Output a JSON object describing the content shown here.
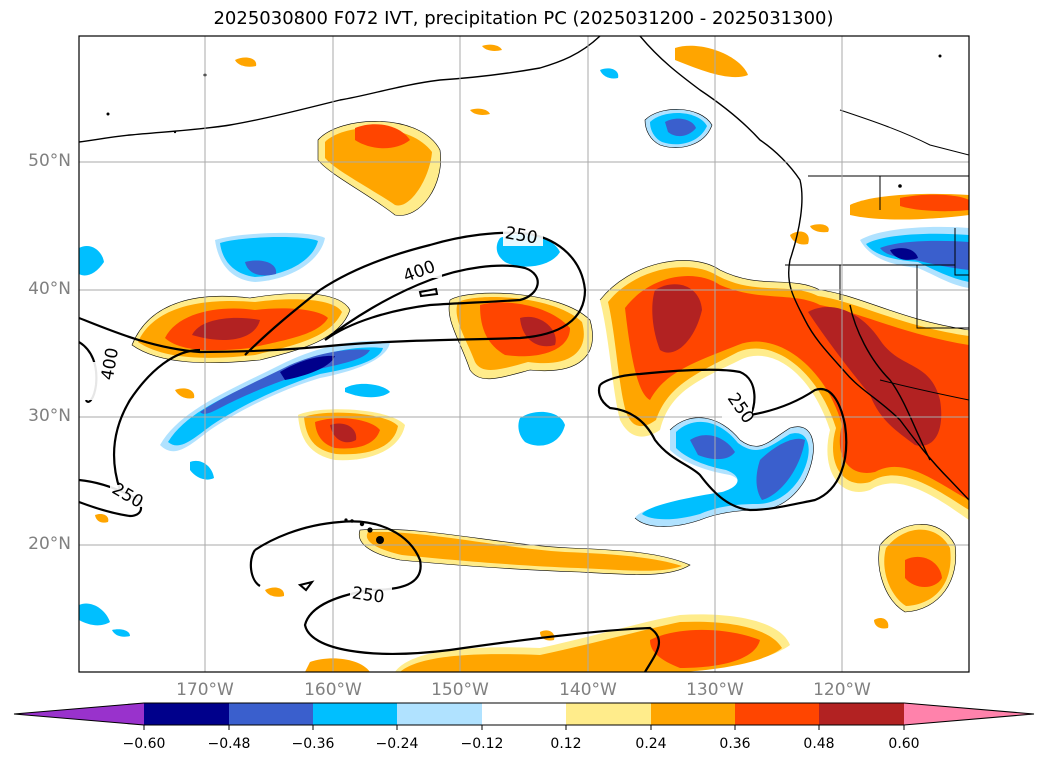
{
  "title": "2025030800 F072 IVT, precipitation PC (2025031200 - 2025031300)",
  "lat_labels": [
    "50°N",
    "40°N",
    "30°N",
    "20°N"
  ],
  "lon_labels": [
    "170°W",
    "160°W",
    "150°W",
    "140°W",
    "130°W",
    "120°W"
  ],
  "colorbar": {
    "ticks": [
      "−0.60",
      "−0.48",
      "−0.36",
      "−0.24",
      "−0.12",
      "0.12",
      "0.24",
      "0.36",
      "0.48",
      "0.60"
    ],
    "colors": {
      "lt_neg060": "#9932cc",
      "neg060_neg048": "#00008b",
      "neg048_neg036": "#3a5fcd",
      "neg036_neg024": "#00bfff",
      "neg024_neg012": "#b0e2ff",
      "neutral": "#ffffff",
      "p012_p024": "#ffec8b",
      "p024_p036": "#ffa500",
      "p036_p048": "#ff4500",
      "p048_p060": "#b22222",
      "gt_p060": "#ff82ab"
    }
  },
  "contour_labels": [
    "250",
    "400",
    "400",
    "250",
    "250",
    "250"
  ]
}
